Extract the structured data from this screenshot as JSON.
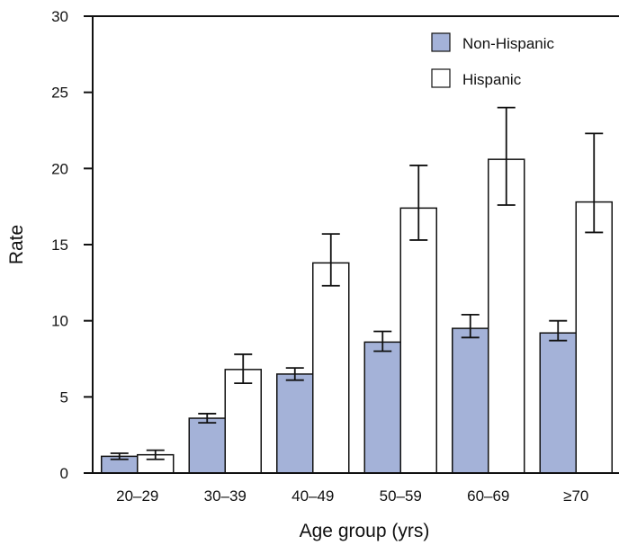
{
  "chart_data": {
    "type": "bar",
    "xlabel": "Age group (yrs)",
    "ylabel": "Rate",
    "ylim": [
      0,
      30
    ],
    "yticks": [
      0,
      5,
      10,
      15,
      20,
      25,
      30
    ],
    "categories": [
      "20–29",
      "30–39",
      "40–49",
      "50–59",
      "60–69",
      "≥70"
    ],
    "series": [
      {
        "name": "Non-Hispanic",
        "color": "#a4b2d8",
        "values": [
          1.1,
          3.6,
          6.5,
          8.6,
          9.5,
          9.2
        ],
        "error_low": [
          0.9,
          3.3,
          6.1,
          8.0,
          8.9,
          8.7
        ],
        "error_high": [
          1.3,
          3.9,
          6.9,
          9.3,
          10.4,
          10.0
        ]
      },
      {
        "name": "Hispanic",
        "color": "#ffffff",
        "values": [
          1.2,
          6.8,
          13.8,
          17.4,
          20.6,
          17.8
        ],
        "error_low": [
          0.9,
          5.9,
          12.3,
          15.3,
          17.6,
          15.8
        ],
        "error_high": [
          1.5,
          7.8,
          15.7,
          20.2,
          24.0,
          22.3
        ]
      }
    ],
    "legend": {
      "position": "top-right"
    },
    "grid": false
  }
}
